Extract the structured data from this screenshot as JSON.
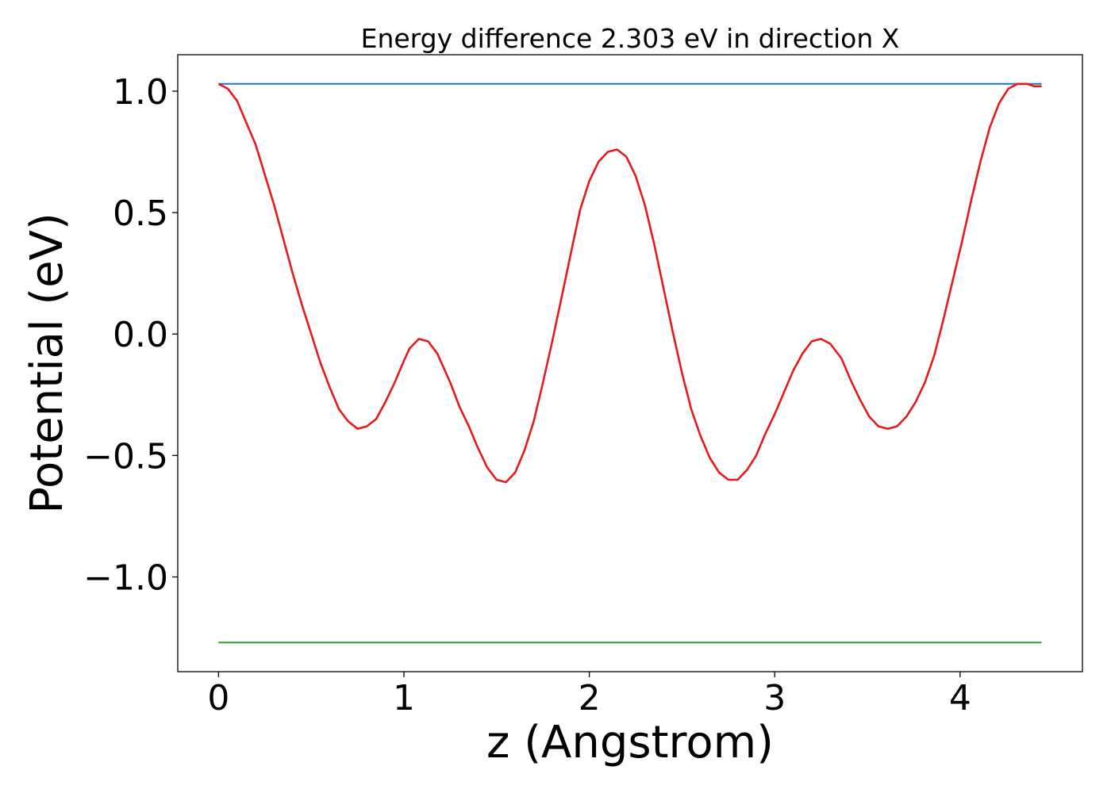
{
  "chart_data": {
    "type": "line",
    "title": "Energy difference 2.303 eV in direction X",
    "xlabel": "z (Angstrom)",
    "ylabel": "Potential (eV)",
    "xlim": [
      -0.22,
      4.66
    ],
    "ylim": [
      -1.39,
      1.15
    ],
    "xticks": [
      0,
      1,
      2,
      3,
      4
    ],
    "xtick_labels": [
      "0",
      "1",
      "2",
      "3",
      "4"
    ],
    "yticks": [
      1.0,
      0.5,
      0.0,
      -0.5,
      -1.0
    ],
    "ytick_labels": [
      "1.0",
      "0.5",
      "0.0",
      "−0.5",
      "−1.0"
    ],
    "grid": false,
    "series": [
      {
        "color": "#1f77b4",
        "x": [
          0.0,
          4.44
        ],
        "y": [
          1.03,
          1.03
        ]
      },
      {
        "color": "#2ca02c",
        "x": [
          0.0,
          4.44
        ],
        "y": [
          -1.27,
          -1.27
        ]
      },
      {
        "color": "#e41a1c",
        "x": [
          0.0,
          0.05,
          0.1,
          0.15,
          0.2,
          0.3,
          0.4,
          0.45,
          0.5,
          0.55,
          0.6,
          0.65,
          0.7,
          0.75,
          0.8,
          0.85,
          0.9,
          0.95,
          1.0,
          1.03,
          1.08,
          1.13,
          1.18,
          1.25,
          1.3,
          1.35,
          1.4,
          1.45,
          1.5,
          1.55,
          1.6,
          1.65,
          1.7,
          1.75,
          1.8,
          1.85,
          1.9,
          1.95,
          2.0,
          2.05,
          2.1,
          2.15,
          2.2,
          2.25,
          2.3,
          2.35,
          2.4,
          2.45,
          2.5,
          2.55,
          2.6,
          2.65,
          2.7,
          2.75,
          2.8,
          2.85,
          2.9,
          2.95,
          3.0,
          3.05,
          3.1,
          3.15,
          3.2,
          3.25,
          3.3,
          3.36,
          3.41,
          3.46,
          3.51,
          3.56,
          3.61,
          3.66,
          3.71,
          3.76,
          3.81,
          3.86,
          3.91,
          3.96,
          4.01,
          4.06,
          4.11,
          4.16,
          4.21,
          4.26,
          4.31,
          4.36,
          4.4,
          4.44
        ],
        "y": [
          1.03,
          1.01,
          0.96,
          0.87,
          0.78,
          0.53,
          0.25,
          0.12,
          0.0,
          -0.12,
          -0.22,
          -0.31,
          -0.36,
          -0.39,
          -0.38,
          -0.35,
          -0.28,
          -0.2,
          -0.11,
          -0.06,
          -0.02,
          -0.03,
          -0.08,
          -0.2,
          -0.3,
          -0.38,
          -0.47,
          -0.55,
          -0.6,
          -0.61,
          -0.57,
          -0.48,
          -0.36,
          -0.2,
          -0.03,
          0.15,
          0.33,
          0.51,
          0.63,
          0.71,
          0.75,
          0.76,
          0.73,
          0.65,
          0.53,
          0.37,
          0.19,
          0.01,
          -0.16,
          -0.31,
          -0.42,
          -0.51,
          -0.57,
          -0.6,
          -0.6,
          -0.56,
          -0.5,
          -0.41,
          -0.33,
          -0.24,
          -0.15,
          -0.08,
          -0.03,
          -0.02,
          -0.04,
          -0.1,
          -0.19,
          -0.27,
          -0.34,
          -0.38,
          -0.39,
          -0.38,
          -0.34,
          -0.28,
          -0.2,
          -0.09,
          0.06,
          0.22,
          0.38,
          0.55,
          0.71,
          0.85,
          0.95,
          1.01,
          1.03,
          1.03,
          1.02,
          1.02
        ]
      }
    ]
  }
}
